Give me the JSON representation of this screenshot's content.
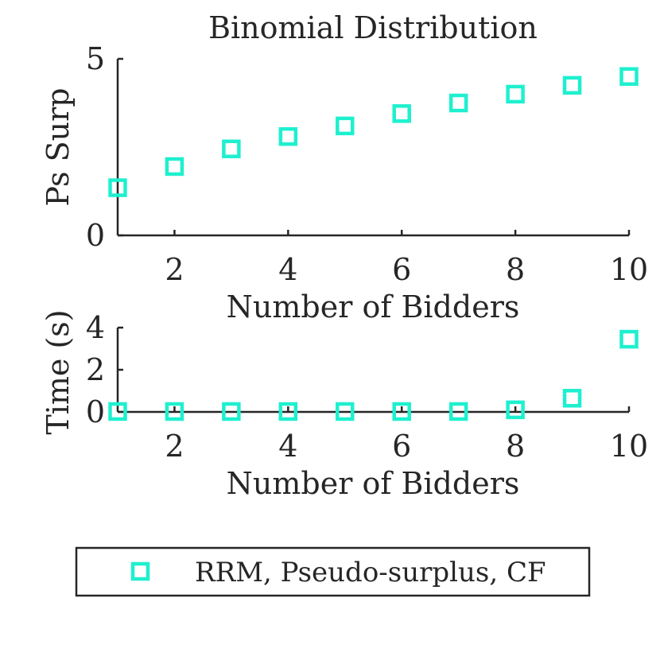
{
  "chart_data": [
    {
      "type": "scatter",
      "title": "Binomial Distribution",
      "xlabel": "Number of Bidders",
      "ylabel": "Ps Surp",
      "xlim": [
        1,
        10
      ],
      "ylim": [
        0,
        5
      ],
      "xticks": [
        "2",
        "4",
        "6",
        "8",
        "10"
      ],
      "yticks": [
        "0",
        "5"
      ],
      "grid": false,
      "series": [
        {
          "name": "RRM, Pseudo-surplus, CF",
          "color": "#1ef0cf",
          "marker": "square",
          "x": [
            1,
            2,
            3,
            4,
            5,
            6,
            7,
            8,
            9,
            10
          ],
          "y": [
            1.35,
            1.95,
            2.45,
            2.8,
            3.1,
            3.45,
            3.75,
            4.0,
            4.25,
            4.5
          ]
        }
      ]
    },
    {
      "type": "scatter",
      "title": "",
      "xlabel": "Number of Bidders",
      "ylabel": "Time (s)",
      "xlim": [
        1,
        10
      ],
      "ylim": [
        0,
        4
      ],
      "xticks": [
        "2",
        "4",
        "6",
        "8",
        "10"
      ],
      "yticks": [
        "0",
        "2",
        "4"
      ],
      "grid": false,
      "series": [
        {
          "name": "RRM, Pseudo-surplus, CF",
          "color": "#1ef0cf",
          "marker": "square",
          "x": [
            1,
            2,
            3,
            4,
            5,
            6,
            7,
            8,
            9,
            10
          ],
          "y": [
            0.02,
            0.02,
            0.02,
            0.02,
            0.02,
            0.02,
            0.02,
            0.1,
            0.65,
            3.45
          ]
        }
      ]
    }
  ],
  "legend": {
    "position": "bottom",
    "entries": [
      {
        "label": "RRM, Pseudo-surplus, CF",
        "color": "#1ef0cf",
        "marker": "square"
      }
    ]
  }
}
